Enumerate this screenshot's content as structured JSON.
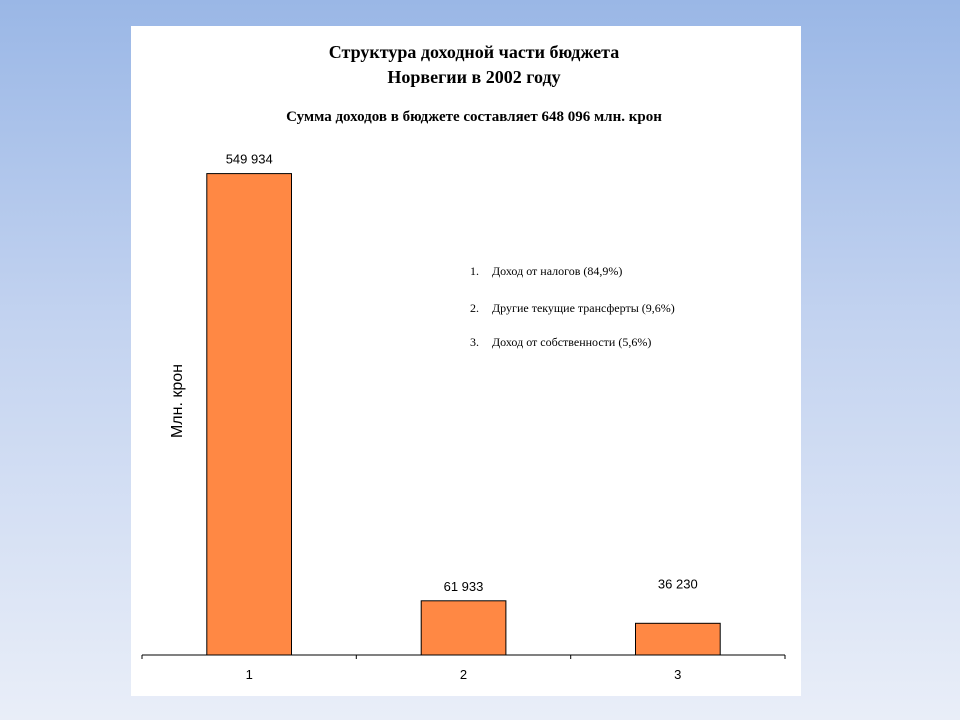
{
  "chart_data": {
    "type": "bar",
    "title_lines": [
      "Структура доходной части бюджета",
      "Норвегии в 2002 году"
    ],
    "subtitle": "Сумма доходов в бюджете составляет 648 096 млн. крон",
    "categories": [
      "1",
      "2",
      "3"
    ],
    "values": [
      549934,
      61933,
      36230
    ],
    "value_labels": [
      "549 934",
      "61 933",
      "36 230"
    ],
    "xlabel": "",
    "ylabel": "Млн. крон",
    "ylim": [
      0,
      570000
    ],
    "grid": false,
    "bar_color": "#ff8844",
    "notes": [
      {
        "num": "1.",
        "text": "Доход от налогов (84,9%)"
      },
      {
        "num": "2.",
        "text": "Другие текущие трансферты (9,6%)"
      },
      {
        "num": "3.",
        "text": "Доход от собственности (5,6%)"
      }
    ]
  }
}
